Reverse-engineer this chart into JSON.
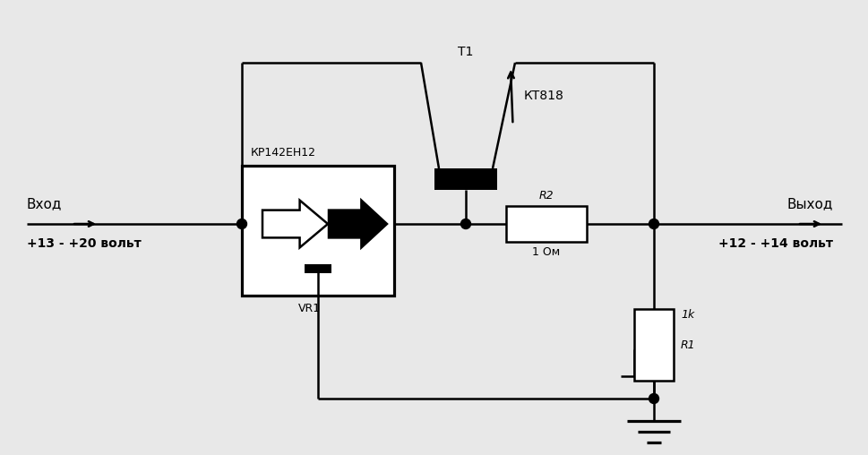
{
  "bg_color": "#e8e8e8",
  "line_color": "#000000",
  "lw": 1.8,
  "fig_width": 9.7,
  "fig_height": 5.08,
  "dpi": 100,
  "labels": {
    "vhod": "Вход",
    "vyhod": "Выход",
    "input_voltage": "+13 - +20 вольт",
    "output_voltage": "+12 - +14 вольт",
    "transistor_name": "КТ818",
    "transistor_label": "Т1",
    "ic_name": "КР142ЕН12",
    "ic_label": "VR1",
    "r2_label": "R2",
    "r2_value": "1 Ом",
    "r1_label": "R1",
    "r1_value": "1k"
  }
}
